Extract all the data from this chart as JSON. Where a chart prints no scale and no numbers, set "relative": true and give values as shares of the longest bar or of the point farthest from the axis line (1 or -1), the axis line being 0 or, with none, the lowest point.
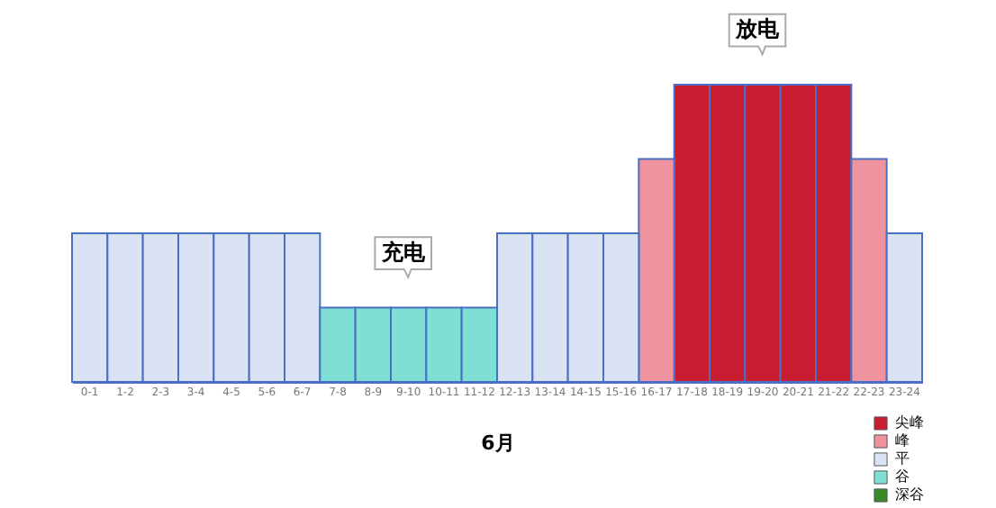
{
  "chart_data": {
    "type": "bar",
    "relative": true,
    "xlabel": "6月",
    "categories": [
      "0-1",
      "1-2",
      "2-3",
      "3-4",
      "4-5",
      "5-6",
      "6-7",
      "7-8",
      "8-9",
      "9-10",
      "10-11",
      "11-12",
      "12-13",
      "13-14",
      "14-15",
      "15-16",
      "16-17",
      "17-18",
      "18-19",
      "19-20",
      "20-21",
      "21-22",
      "22-23",
      "23-24"
    ],
    "series": [
      {
        "name": "尖峰",
        "color": "#c81d31",
        "values": [
          null,
          null,
          null,
          null,
          null,
          null,
          null,
          null,
          null,
          null,
          null,
          null,
          null,
          null,
          null,
          null,
          null,
          1,
          1,
          1,
          1,
          1,
          null,
          null
        ]
      },
      {
        "name": "峰",
        "color": "#ef949e",
        "values": [
          null,
          null,
          null,
          null,
          null,
          null,
          null,
          null,
          null,
          null,
          null,
          null,
          null,
          null,
          null,
          null,
          0.75,
          null,
          null,
          null,
          null,
          null,
          0.75,
          null
        ]
      },
      {
        "name": "平",
        "color": "#dae3f3",
        "values": [
          0.5,
          0.5,
          0.5,
          0.5,
          0.5,
          0.5,
          0.5,
          null,
          null,
          null,
          null,
          null,
          0.5,
          0.5,
          0.5,
          0.5,
          null,
          null,
          null,
          null,
          null,
          null,
          null,
          0.5
        ]
      },
      {
        "name": "谷",
        "color": "#7fdfd4",
        "values": [
          null,
          null,
          null,
          null,
          null,
          null,
          null,
          0.25,
          0.25,
          0.25,
          0.25,
          0.25,
          null,
          null,
          null,
          null,
          null,
          null,
          null,
          null,
          null,
          null,
          null,
          null
        ]
      },
      {
        "name": "深谷",
        "color": "#3a8a2a",
        "values": [
          null,
          null,
          null,
          null,
          null,
          null,
          null,
          null,
          null,
          null,
          null,
          null,
          null,
          null,
          null,
          null,
          null,
          null,
          null,
          null,
          null,
          null,
          null,
          null
        ]
      }
    ],
    "annotations": [
      {
        "text": "充电",
        "x": "9-10",
        "y": 0.25
      },
      {
        "text": "放电",
        "x": "19-20",
        "y": 1
      }
    ],
    "legend": "bottom right",
    "grid": false
  }
}
